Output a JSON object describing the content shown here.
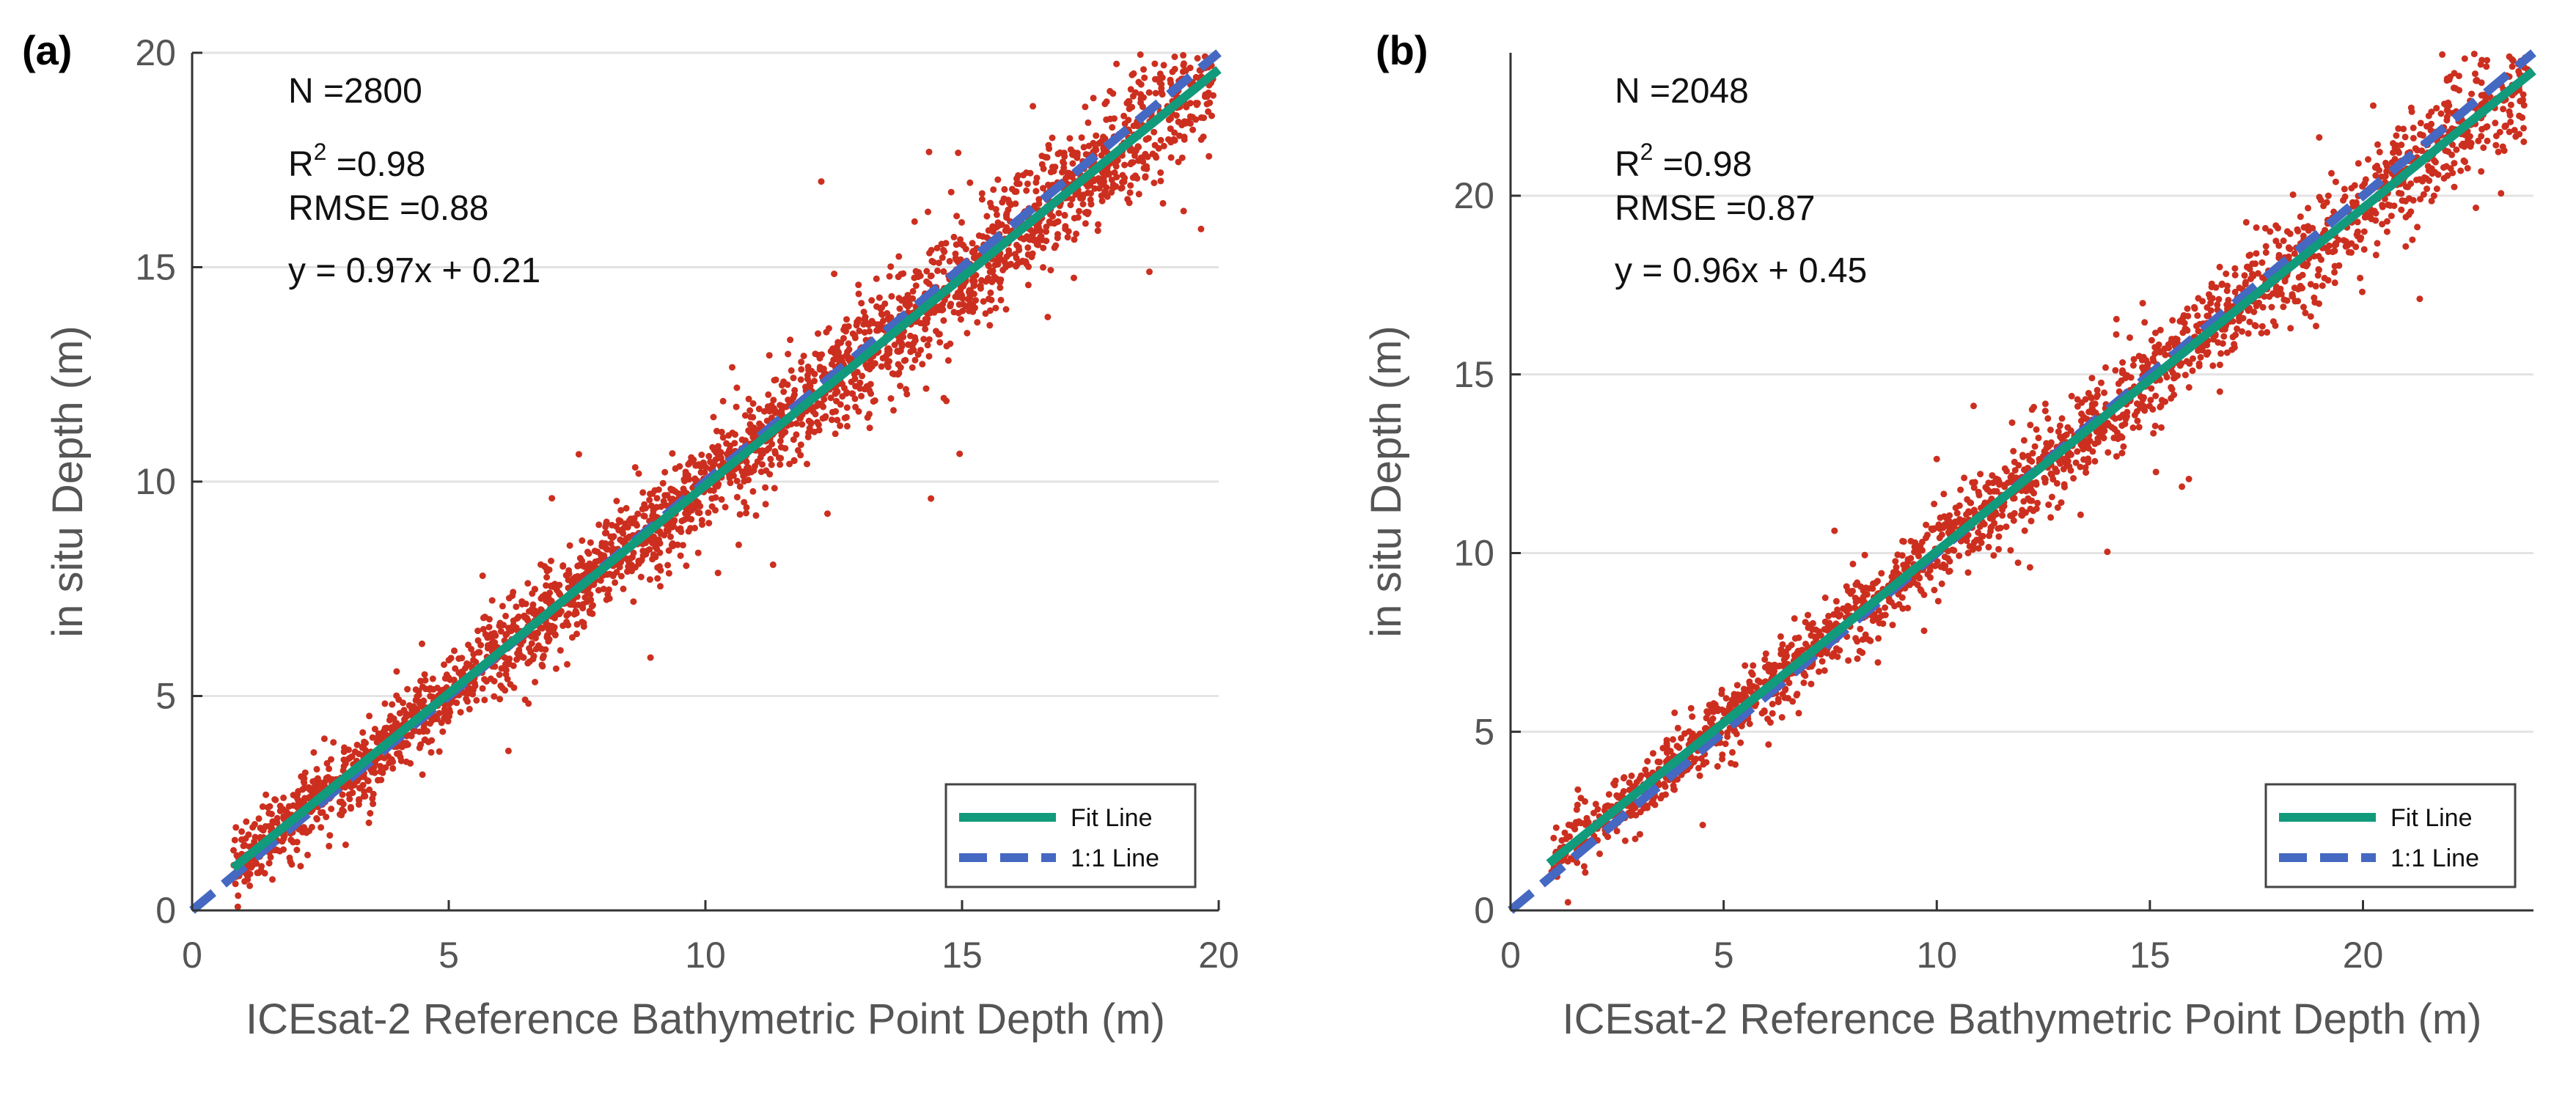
{
  "chart_data": [
    {
      "type": "scatter",
      "panel_label": "(a)",
      "xlabel": "ICEsat-2 Reference Bathymetric Point Depth (m)",
      "ylabel": "in situ Depth (m)",
      "xlim": [
        0,
        20
      ],
      "ylim": [
        0,
        20
      ],
      "xticks": [
        "0",
        "5",
        "10",
        "15",
        "20"
      ],
      "yticks": [
        "0",
        "5",
        "10",
        "15",
        "20"
      ],
      "grid": true,
      "stats": {
        "n": "N =2800",
        "r2_prefix": "R",
        "r2_sup": "2",
        "r2_suffix": " =0.98",
        "rmse": "RMSE =0.88",
        "equation": "y = 0.97x + 0.21"
      },
      "fit": {
        "slope": 0.97,
        "intercept": 0.21,
        "x_start": 0.8,
        "x_end": 20
      },
      "one_to_one": {
        "x_start": 0,
        "x_end": 20
      },
      "n_points": 2800,
      "legend": {
        "position": "bottom-right",
        "fit_label": "Fit Line",
        "one_label": "1:1 Line"
      },
      "colors": {
        "points": "#cc2f1f",
        "fit": "#119a7b",
        "one": "#4568c2"
      }
    },
    {
      "type": "scatter",
      "panel_label": "(b)",
      "xlabel": "ICEsat-2 Reference Bathymetric Point Depth (m)",
      "ylabel": "in situ Depth (m)",
      "xlim": [
        0,
        24
      ],
      "ylim": [
        0,
        24
      ],
      "xticks": [
        "0",
        "5",
        "10",
        "15",
        "20"
      ],
      "yticks": [
        "0",
        "5",
        "10",
        "15",
        "20"
      ],
      "grid": true,
      "stats": {
        "n": "N =2048",
        "r2_prefix": "R",
        "r2_sup": "2",
        "r2_suffix": " =0.98",
        "rmse": "RMSE =0.87",
        "equation": "y = 0.96x + 0.45"
      },
      "fit": {
        "slope": 0.96,
        "intercept": 0.45,
        "x_start": 0.9,
        "x_end": 24
      },
      "one_to_one": {
        "x_start": 0,
        "x_end": 24
      },
      "n_points": 2048,
      "legend": {
        "position": "bottom-right",
        "fit_label": "Fit Line",
        "one_label": "1:1 Line"
      },
      "colors": {
        "points": "#cc2f1f",
        "fit": "#119a7b",
        "one": "#4568c2"
      }
    }
  ]
}
